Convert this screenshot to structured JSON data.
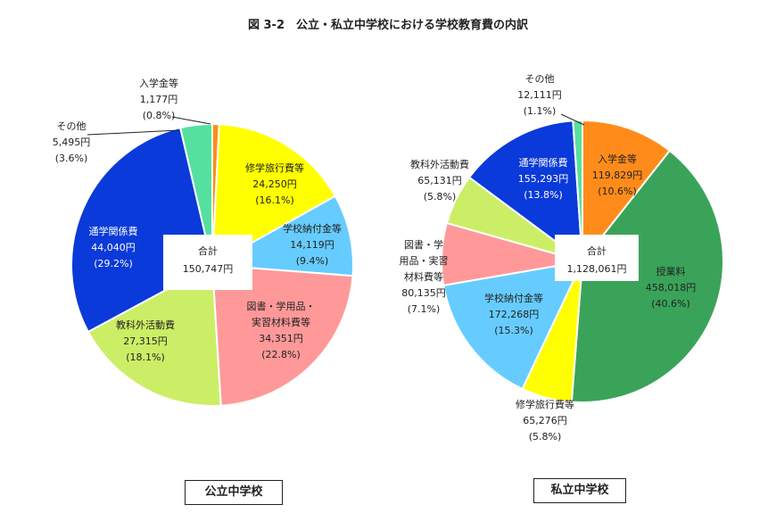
{
  "title": "図 3-2　公立・私立中学校における学校教育費の内訳",
  "chart_data": [
    {
      "type": "pie",
      "name": "公立中学校",
      "total_label": "合計",
      "total": "150,747円",
      "slices": [
        {
          "name": "入学金等",
          "value": 1177,
          "amount": "1,177円",
          "pct": "(0.8%)",
          "color": "#ff8c1a"
        },
        {
          "name": "修学旅行費等",
          "value": 24250,
          "amount": "24,250円",
          "pct": "(16.1%)",
          "color": "#ffff00"
        },
        {
          "name": "学校納付金等",
          "value": 14119,
          "amount": "14,119円",
          "pct": "(9.4%)",
          "color": "#66ccff"
        },
        {
          "name": "図書・学用品・実習材料費等",
          "value": 34351,
          "amount": "34,351円",
          "pct": "(22.8%)",
          "color": "#ff9999"
        },
        {
          "name": "教科外活動費",
          "value": 27315,
          "amount": "27,315円",
          "pct": "(18.1%)",
          "color": "#ccee66"
        },
        {
          "name": "通学関係費",
          "value": 44040,
          "amount": "44,040円",
          "pct": "(29.2%)",
          "color": "#0a3ad9"
        },
        {
          "name": "その他",
          "value": 5495,
          "amount": "5,495円",
          "pct": "(3.6%)",
          "color": "#55e0a0"
        }
      ]
    },
    {
      "type": "pie",
      "name": "私立中学校",
      "total_label": "合計",
      "total": "1,128,061円",
      "slices": [
        {
          "name": "入学金等",
          "value": 119829,
          "amount": "119,829円",
          "pct": "(10.6%)",
          "color": "#ff8c1a"
        },
        {
          "name": "授業料",
          "value": 458018,
          "amount": "458,018円",
          "pct": "(40.6%)",
          "color": "#3aa35a"
        },
        {
          "name": "修学旅行費等",
          "value": 65276,
          "amount": "65,276円",
          "pct": "(5.8%)",
          "color": "#ffff00"
        },
        {
          "name": "学校納付金等",
          "value": 172268,
          "amount": "172,268円",
          "pct": "(15.3%)",
          "color": "#66ccff"
        },
        {
          "name": "図書・学用品・実習材料費等",
          "value": 80135,
          "amount": "80,135円",
          "pct": "(7.1%)",
          "color": "#ff9999"
        },
        {
          "name": "教科外活動費",
          "value": 65131,
          "amount": "65,131円",
          "pct": "(5.8%)",
          "color": "#ccee66"
        },
        {
          "name": "通学関係費",
          "value": 155293,
          "amount": "155,293円",
          "pct": "(13.8%)",
          "color": "#0a3ad9"
        },
        {
          "name": "その他",
          "value": 12111,
          "amount": "12,111円",
          "pct": "(1.1%)",
          "color": "#55e0a0"
        }
      ]
    }
  ],
  "labels": {
    "public": [
      {
        "lines": [
          "入学金等",
          "1,177円",
          "(0.8%)"
        ]
      },
      {
        "lines": [
          "修学旅行費等",
          "24,250円",
          "(16.1%)"
        ]
      },
      {
        "lines": [
          "学校納付金等",
          "14,119円",
          "(9.4%)"
        ]
      },
      {
        "lines": [
          "図書・学用品・",
          "実習材料費等",
          "34,351円",
          "(22.8%)"
        ]
      },
      {
        "lines": [
          "教科外活動費",
          "27,315円",
          "(18.1%)"
        ]
      },
      {
        "lines": [
          "通学関係費",
          "44,040円",
          "(29.2%)"
        ]
      },
      {
        "lines": [
          "その他",
          "5,495円",
          "(3.6%)"
        ]
      }
    ],
    "private": [
      {
        "lines": [
          "入学金等",
          "119,829円",
          "(10.6%)"
        ]
      },
      {
        "lines": [
          "授業料",
          "458,018円",
          "(40.6%)"
        ]
      },
      {
        "lines": [
          "修学旅行費等",
          "65,276円",
          "(5.8%)"
        ]
      },
      {
        "lines": [
          "学校納付金等",
          "172,268円",
          "(15.3%)"
        ]
      },
      {
        "lines": [
          "図書・学",
          "用品・実習",
          "材料費等",
          "80,135円",
          "(7.1%)"
        ]
      },
      {
        "lines": [
          "教科外活動費",
          "65,131円",
          "(5.8%)"
        ]
      },
      {
        "lines": [
          "通学関係費",
          "155,293円",
          "(13.8%)"
        ]
      },
      {
        "lines": [
          "その他",
          "12,111円",
          "(1.1%)"
        ]
      }
    ]
  },
  "captions": {
    "public": "公立中学校",
    "private": "私立中学校"
  }
}
